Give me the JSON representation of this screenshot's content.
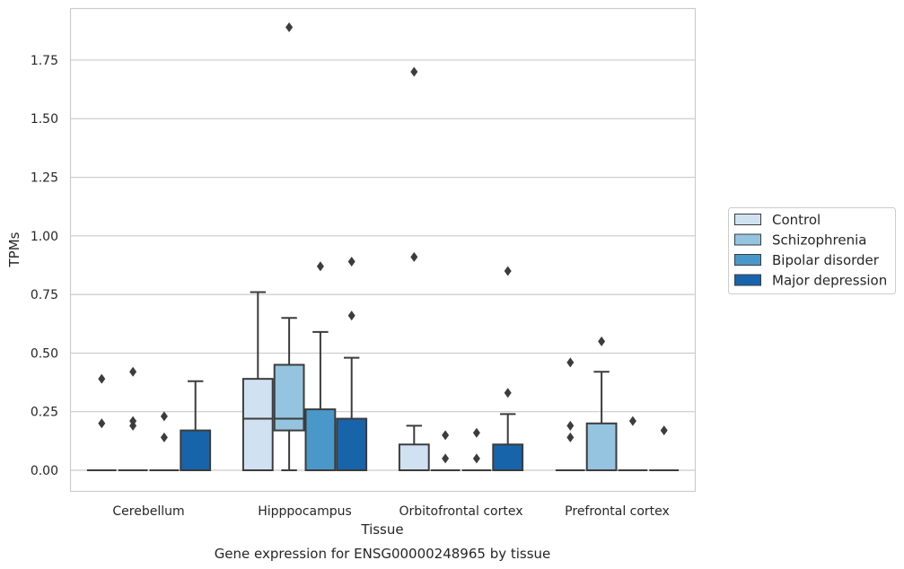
{
  "chart_data": {
    "type": "box",
    "title": "",
    "caption": "Gene expression for ENSG00000248965 by tissue",
    "xlabel": "Tissue",
    "ylabel": "TPMs",
    "ylim": [
      -0.09,
      1.97
    ],
    "y_ticks": [
      0.0,
      0.25,
      0.5,
      0.75,
      1.0,
      1.25,
      1.5,
      1.75
    ],
    "y_tick_labels": [
      "0.00",
      "0.25",
      "0.50",
      "0.75",
      "1.00",
      "1.25",
      "1.50",
      "1.75"
    ],
    "grid": "horizontal",
    "legend_position": "right",
    "categories": [
      "Cerebellum",
      "Hipppocampus",
      "Orbitofrontal cortex",
      "Prefrontal cortex"
    ],
    "series": [
      {
        "name": "Control",
        "color": "#d0e1f2",
        "boxes": [
          {
            "q1": 0,
            "median": 0,
            "q3": 0,
            "whislo": 0,
            "whishi": 0,
            "fliers": [
              0.39,
              0.2
            ]
          },
          {
            "q1": 0,
            "median": 0.22,
            "q3": 0.39,
            "whislo": 0,
            "whishi": 0.76,
            "fliers": []
          },
          {
            "q1": 0,
            "median": 0,
            "q3": 0.11,
            "whislo": 0,
            "whishi": 0.19,
            "fliers": [
              1.7,
              0.91
            ]
          },
          {
            "q1": 0,
            "median": 0,
            "q3": 0,
            "whislo": 0,
            "whishi": 0,
            "fliers": [
              0.46,
              0.19,
              0.14
            ]
          }
        ]
      },
      {
        "name": "Schizophrenia",
        "color": "#94c4df",
        "boxes": [
          {
            "q1": 0,
            "median": 0,
            "q3": 0,
            "whislo": 0,
            "whishi": 0,
            "fliers": [
              0.42,
              0.21,
              0.19
            ]
          },
          {
            "q1": 0.17,
            "median": 0.22,
            "q3": 0.45,
            "whislo": 0,
            "whishi": 0.65,
            "fliers": [
              1.89
            ]
          },
          {
            "q1": 0,
            "median": 0,
            "q3": 0,
            "whislo": 0,
            "whishi": 0,
            "fliers": [
              0.15,
              0.05
            ]
          },
          {
            "q1": 0,
            "median": 0,
            "q3": 0.2,
            "whislo": 0,
            "whishi": 0.42,
            "fliers": [
              0.55
            ]
          }
        ]
      },
      {
        "name": "Bipolar disorder",
        "color": "#4a98c9",
        "boxes": [
          {
            "q1": 0,
            "median": 0,
            "q3": 0,
            "whislo": 0,
            "whishi": 0,
            "fliers": [
              0.23,
              0.14
            ]
          },
          {
            "q1": 0,
            "median": 0,
            "q3": 0.26,
            "whislo": 0,
            "whishi": 0.59,
            "fliers": [
              0.87
            ]
          },
          {
            "q1": 0,
            "median": 0,
            "q3": 0,
            "whislo": 0,
            "whishi": 0,
            "fliers": [
              0.16,
              0.05
            ]
          },
          {
            "q1": 0,
            "median": 0,
            "q3": 0,
            "whislo": 0,
            "whishi": 0,
            "fliers": [
              0.21
            ]
          }
        ]
      },
      {
        "name": "Major depression",
        "color": "#1764ab",
        "boxes": [
          {
            "q1": 0,
            "median": 0,
            "q3": 0.17,
            "whislo": 0,
            "whishi": 0.38,
            "fliers": []
          },
          {
            "q1": 0,
            "median": 0,
            "q3": 0.22,
            "whislo": 0,
            "whishi": 0.48,
            "fliers": [
              0.89,
              0.66
            ]
          },
          {
            "q1": 0,
            "median": 0,
            "q3": 0.11,
            "whislo": 0,
            "whishi": 0.24,
            "fliers": [
              0.85,
              0.33
            ]
          },
          {
            "q1": 0,
            "median": 0,
            "q3": 0,
            "whislo": 0,
            "whishi": 0,
            "fliers": [
              0.17
            ]
          }
        ]
      }
    ]
  }
}
